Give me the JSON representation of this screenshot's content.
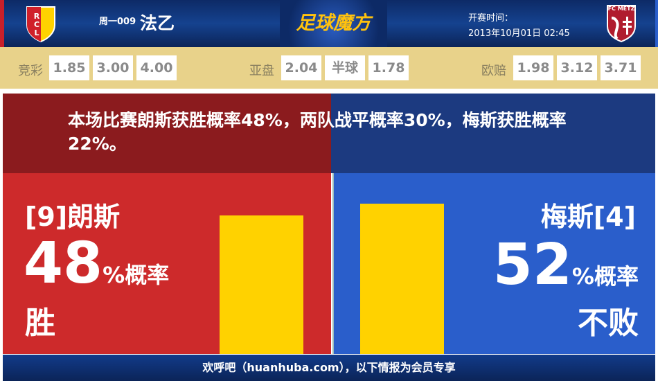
{
  "header": {
    "match_no": "周一009",
    "league": "法乙",
    "brand": "足球魔方",
    "kickoff_label": "开赛时间：",
    "kickoff_time": "2013年10月01日 02:45",
    "home_logo_text": "RCL",
    "away_logo_text": "FC METZ"
  },
  "odds": {
    "jingcai": {
      "label": "竞彩",
      "values": [
        "1.85",
        "3.00",
        "4.00"
      ]
    },
    "yapan": {
      "label": "亚盘",
      "values": [
        "2.04",
        "半球",
        "1.78"
      ]
    },
    "oupei": {
      "label": "欧赔",
      "values": [
        "1.98",
        "3.12",
        "3.71"
      ]
    }
  },
  "summary": "本场比赛朗斯获胜概率48%，两队战平概率30%，梅斯获胜概率22%。",
  "home": {
    "name": "[9]朗斯",
    "percent": "48",
    "unit": "%概率",
    "result": "胜",
    "bar_value": 48
  },
  "away": {
    "name": "梅斯[4]",
    "percent": "52",
    "unit": "%概率",
    "result": "不败",
    "bar_value": 52
  },
  "colors": {
    "home": "#cd2a2b",
    "away": "#2a5ecb",
    "bar": "#ffd200"
  },
  "footer": "欢呼吧（huanhuba.com），以下情报为会员专享"
}
